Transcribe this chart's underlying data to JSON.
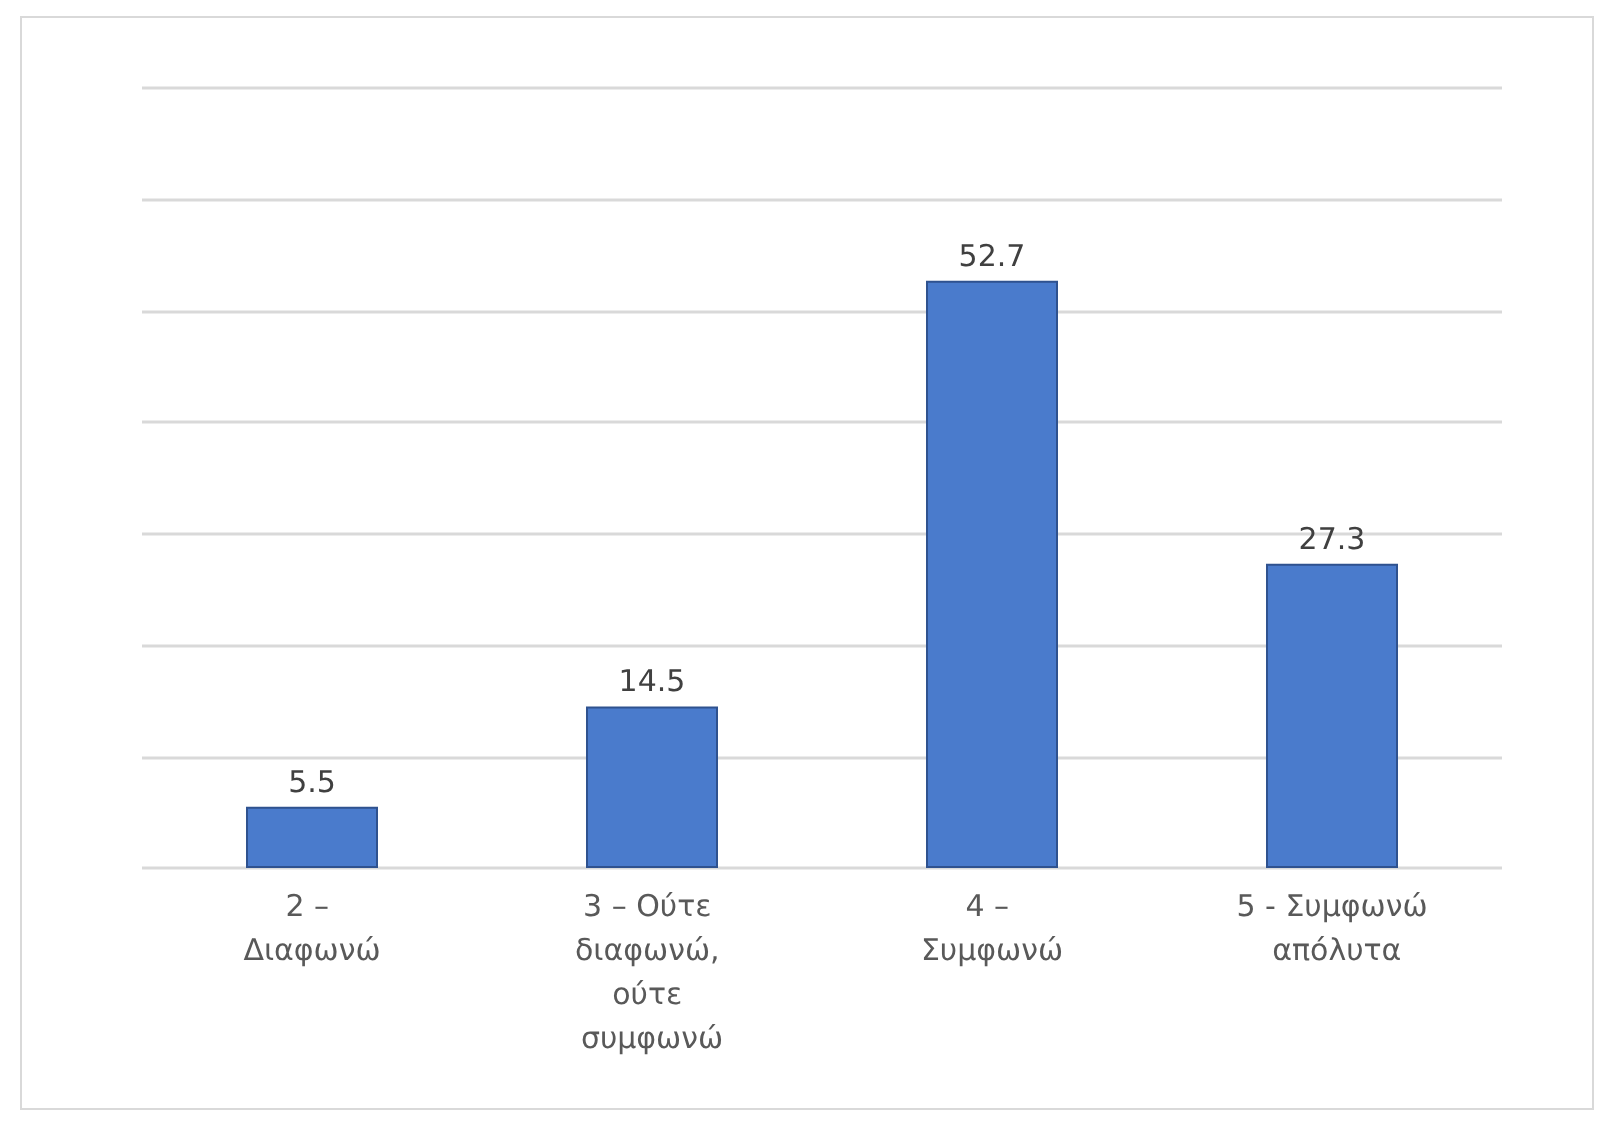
{
  "chart_data": {
    "type": "bar",
    "categories": [
      "2 – Διαφωνώ",
      "3 – Ούτε διαφωνώ, ούτε συμφωνώ",
      "4 – Συμφωνώ",
      "5 - Συμφωνώ απόλυτα"
    ],
    "values": [
      5.5,
      14.5,
      52.7,
      27.3
    ],
    "color": "#4a7bcc",
    "ylim": [
      0,
      70
    ],
    "yticks": [
      {
        "value": 0,
        "label": null
      },
      {
        "value": 10,
        "label": null
      },
      {
        "value": 20,
        "label": null
      },
      {
        "value": 30,
        "label": null
      },
      {
        "value": 40,
        "label": null
      },
      {
        "value": 50,
        "label": null
      },
      {
        "value": 60,
        "label": null
      },
      {
        "value": 70,
        "label": null
      }
    ],
    "grid": "y",
    "data_labels": true,
    "tick_labels": "x"
  }
}
